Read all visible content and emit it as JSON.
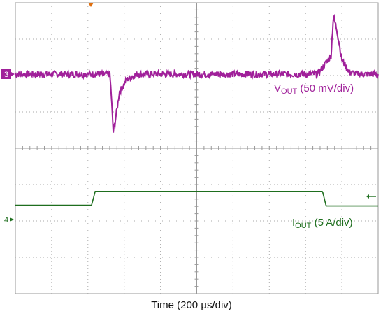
{
  "chart_data": {
    "type": "line",
    "xlabel": "Time (200 µs/div)",
    "time_per_div_us": 200,
    "divisions_x": 10,
    "divisions_y": 8,
    "grid": true,
    "series": [
      {
        "name_main": "V",
        "name_sub": "OUT",
        "scale_text": "(50 mV/div)",
        "color": "#a0209a",
        "channel_marker": "3",
        "x_div": [
          0,
          3.9,
          3.95,
          4.05,
          4.15,
          4.3,
          4.6,
          5.0,
          6.0,
          8.0,
          10.0,
          12.5,
          13.05,
          13.15,
          13.3,
          13.5,
          13.8,
          14.2,
          15.0
        ],
        "y_div": [
          0,
          0,
          -0.4,
          -1.6,
          -1.2,
          -0.5,
          -0.15,
          0,
          0,
          0,
          0,
          0,
          0.5,
          1.6,
          1.2,
          0.4,
          0.05,
          0,
          0
        ],
        "noise_div": 0.09
      },
      {
        "name_main": "I",
        "name_sub": "OUT",
        "scale_text": "(5 A/div)",
        "color": "#1e6e1e",
        "channel_marker": "4",
        "x_div": [
          0,
          3.15,
          3.3,
          12.7,
          12.85,
          15.0
        ],
        "y_div": [
          0.22,
          0.22,
          0.6,
          0.6,
          0.2,
          0.2
        ]
      }
    ],
    "trigger_marker_color": "#e07010"
  }
}
